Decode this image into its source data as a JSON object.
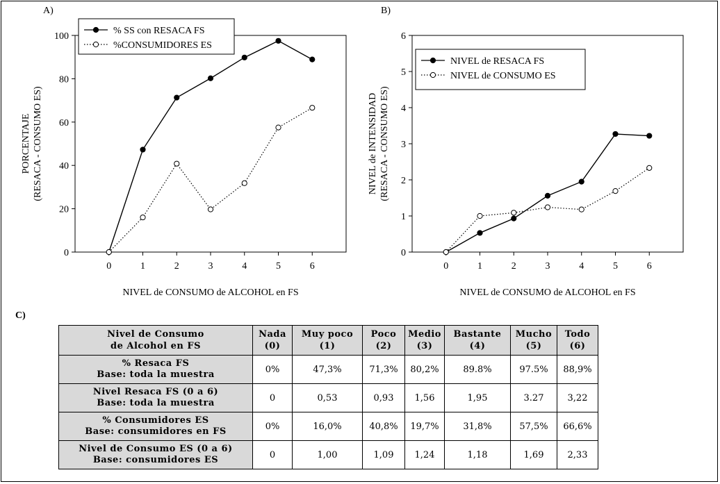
{
  "panel_labels": {
    "a": "A)",
    "b": "B)",
    "c": "C)"
  },
  "chart_data": [
    {
      "type": "line",
      "panel": "A)",
      "x": [
        0,
        1,
        2,
        3,
        4,
        5,
        6
      ],
      "xlabel": "NIVEL de CONSUMO de ALCOHOL en FS",
      "ylabel_lines": [
        "PORCENTAJE",
        "(RESACA - CONSUMO ES)"
      ],
      "xlim": [
        -1,
        7
      ],
      "ylim": [
        0,
        100
      ],
      "yticks": [
        0,
        20,
        40,
        60,
        80,
        100
      ],
      "xticks": [
        0,
        1,
        2,
        3,
        4,
        5,
        6
      ],
      "legend_position": "top-left",
      "series": [
        {
          "name": "% SS con RESACA FS",
          "values": [
            0,
            47.3,
            71.3,
            80.2,
            89.8,
            97.5,
            88.9
          ],
          "marker": "filled-circle",
          "line": "solid"
        },
        {
          "name": "%CONSUMIDORES ES",
          "values": [
            0,
            16.0,
            40.8,
            19.7,
            31.8,
            57.5,
            66.6
          ],
          "marker": "open-circle",
          "line": "dotted"
        }
      ]
    },
    {
      "type": "line",
      "panel": "B)",
      "x": [
        0,
        1,
        2,
        3,
        4,
        5,
        6
      ],
      "xlabel": "NIVEL de CONSUMO de ALCOHOL en FS",
      "ylabel_lines": [
        "NIVEL de INTENSIDAD",
        "(RESACA - CONSUMO ES)"
      ],
      "xlim": [
        -1,
        7
      ],
      "ylim": [
        0,
        6
      ],
      "yticks": [
        0,
        1,
        2,
        3,
        4,
        5,
        6
      ],
      "xticks": [
        0,
        1,
        2,
        3,
        4,
        5,
        6
      ],
      "legend_position": "top-left",
      "series": [
        {
          "name": "NIVEL de RESACA FS",
          "values": [
            0,
            0.53,
            0.93,
            1.56,
            1.95,
            3.27,
            3.22
          ],
          "marker": "filled-circle",
          "line": "solid"
        },
        {
          "name": "NIVEL de CONSUMO ES",
          "values": [
            0,
            1.0,
            1.09,
            1.24,
            1.18,
            1.69,
            2.33
          ],
          "marker": "open-circle",
          "line": "dotted"
        }
      ]
    },
    {
      "type": "table",
      "panel": "C)",
      "header": [
        [
          "Nivel de Consumo",
          "de Alcohol en FS"
        ],
        [
          "Nada",
          "(0)"
        ],
        [
          "Muy poco",
          "(1)"
        ],
        [
          "Poco",
          "(2)"
        ],
        [
          "Medio",
          "(3)"
        ],
        [
          "Bastante",
          "(4)"
        ],
        [
          "Mucho",
          "(5)"
        ],
        [
          "Todo",
          "(6)"
        ]
      ],
      "rows": [
        {
          "label": [
            "% Resaca FS",
            "Base: toda la muestra"
          ],
          "cells": [
            "0%",
            "47,3%",
            "71,3%",
            "80,2%",
            "89.8%",
            "97.5%",
            "88,9%"
          ]
        },
        {
          "label": [
            "Nivel Resaca FS (0 a 6)",
            "Base: toda la muestra"
          ],
          "cells": [
            "0",
            "0,53",
            "0,93",
            "1,56",
            "1,95",
            "3.27",
            "3,22"
          ]
        },
        {
          "label": [
            "% Consumidores ES",
            "Base: consumidores en FS"
          ],
          "cells": [
            "0%",
            "16,0%",
            "40,8%",
            "19,7%",
            "31,8%",
            "57,5%",
            "66,6%"
          ]
        },
        {
          "label": [
            "Nivel de Consumo ES (0 a 6)",
            "Base: consumidores ES"
          ],
          "cells": [
            "0",
            "1,00",
            "1,09",
            "1,24",
            "1,18",
            "1,69",
            "2,33"
          ]
        }
      ]
    }
  ]
}
